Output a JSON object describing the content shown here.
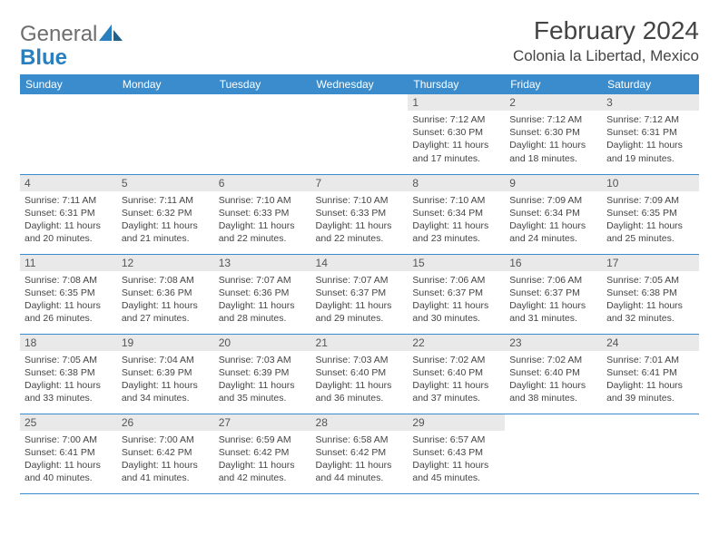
{
  "logo": {
    "text_general": "General",
    "text_blue": "Blue"
  },
  "header": {
    "month_title": "February 2024",
    "location": "Colonia la Libertad, Mexico"
  },
  "colors": {
    "header_band": "#3a8ccc",
    "daynum_bg": "#e9e9e9",
    "text": "#444444",
    "logo_gray": "#6e6e6e",
    "logo_blue": "#2a7fbf",
    "row_divider": "#3a8ccc",
    "background": "#ffffff"
  },
  "day_names": [
    "Sunday",
    "Monday",
    "Tuesday",
    "Wednesday",
    "Thursday",
    "Friday",
    "Saturday"
  ],
  "weeks": [
    [
      null,
      null,
      null,
      null,
      {
        "n": "1",
        "sr": "7:12 AM",
        "ss": "6:30 PM",
        "dl": "11 hours and 17 minutes."
      },
      {
        "n": "2",
        "sr": "7:12 AM",
        "ss": "6:30 PM",
        "dl": "11 hours and 18 minutes."
      },
      {
        "n": "3",
        "sr": "7:12 AM",
        "ss": "6:31 PM",
        "dl": "11 hours and 19 minutes."
      }
    ],
    [
      {
        "n": "4",
        "sr": "7:11 AM",
        "ss": "6:31 PM",
        "dl": "11 hours and 20 minutes."
      },
      {
        "n": "5",
        "sr": "7:11 AM",
        "ss": "6:32 PM",
        "dl": "11 hours and 21 minutes."
      },
      {
        "n": "6",
        "sr": "7:10 AM",
        "ss": "6:33 PM",
        "dl": "11 hours and 22 minutes."
      },
      {
        "n": "7",
        "sr": "7:10 AM",
        "ss": "6:33 PM",
        "dl": "11 hours and 22 minutes."
      },
      {
        "n": "8",
        "sr": "7:10 AM",
        "ss": "6:34 PM",
        "dl": "11 hours and 23 minutes."
      },
      {
        "n": "9",
        "sr": "7:09 AM",
        "ss": "6:34 PM",
        "dl": "11 hours and 24 minutes."
      },
      {
        "n": "10",
        "sr": "7:09 AM",
        "ss": "6:35 PM",
        "dl": "11 hours and 25 minutes."
      }
    ],
    [
      {
        "n": "11",
        "sr": "7:08 AM",
        "ss": "6:35 PM",
        "dl": "11 hours and 26 minutes."
      },
      {
        "n": "12",
        "sr": "7:08 AM",
        "ss": "6:36 PM",
        "dl": "11 hours and 27 minutes."
      },
      {
        "n": "13",
        "sr": "7:07 AM",
        "ss": "6:36 PM",
        "dl": "11 hours and 28 minutes."
      },
      {
        "n": "14",
        "sr": "7:07 AM",
        "ss": "6:37 PM",
        "dl": "11 hours and 29 minutes."
      },
      {
        "n": "15",
        "sr": "7:06 AM",
        "ss": "6:37 PM",
        "dl": "11 hours and 30 minutes."
      },
      {
        "n": "16",
        "sr": "7:06 AM",
        "ss": "6:37 PM",
        "dl": "11 hours and 31 minutes."
      },
      {
        "n": "17",
        "sr": "7:05 AM",
        "ss": "6:38 PM",
        "dl": "11 hours and 32 minutes."
      }
    ],
    [
      {
        "n": "18",
        "sr": "7:05 AM",
        "ss": "6:38 PM",
        "dl": "11 hours and 33 minutes."
      },
      {
        "n": "19",
        "sr": "7:04 AM",
        "ss": "6:39 PM",
        "dl": "11 hours and 34 minutes."
      },
      {
        "n": "20",
        "sr": "7:03 AM",
        "ss": "6:39 PM",
        "dl": "11 hours and 35 minutes."
      },
      {
        "n": "21",
        "sr": "7:03 AM",
        "ss": "6:40 PM",
        "dl": "11 hours and 36 minutes."
      },
      {
        "n": "22",
        "sr": "7:02 AM",
        "ss": "6:40 PM",
        "dl": "11 hours and 37 minutes."
      },
      {
        "n": "23",
        "sr": "7:02 AM",
        "ss": "6:40 PM",
        "dl": "11 hours and 38 minutes."
      },
      {
        "n": "24",
        "sr": "7:01 AM",
        "ss": "6:41 PM",
        "dl": "11 hours and 39 minutes."
      }
    ],
    [
      {
        "n": "25",
        "sr": "7:00 AM",
        "ss": "6:41 PM",
        "dl": "11 hours and 40 minutes."
      },
      {
        "n": "26",
        "sr": "7:00 AM",
        "ss": "6:42 PM",
        "dl": "11 hours and 41 minutes."
      },
      {
        "n": "27",
        "sr": "6:59 AM",
        "ss": "6:42 PM",
        "dl": "11 hours and 42 minutes."
      },
      {
        "n": "28",
        "sr": "6:58 AM",
        "ss": "6:42 PM",
        "dl": "11 hours and 44 minutes."
      },
      {
        "n": "29",
        "sr": "6:57 AM",
        "ss": "6:43 PM",
        "dl": "11 hours and 45 minutes."
      },
      null,
      null
    ]
  ],
  "labels": {
    "sunrise": "Sunrise: ",
    "sunset": "Sunset: ",
    "daylight": "Daylight: "
  },
  "typography": {
    "title_fontsize": 28,
    "location_fontsize": 17,
    "dayhead_fontsize": 12,
    "daynum_fontsize": 12,
    "body_fontsize": 10.5
  }
}
